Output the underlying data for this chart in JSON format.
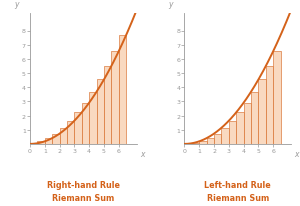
{
  "title_right": "Right-hand Rule\nRiemann Sum",
  "title_left": "Left-hand Rule\nRiemann Sum",
  "title_color": "#D4621A",
  "title_fontsize": 5.8,
  "bar_color": "#F9D9C0",
  "bar_edge_color": "#D4621A",
  "curve_color": "#D4621A",
  "curve_lw": 1.4,
  "xlim": [
    0,
    7.2
  ],
  "ylim": [
    0,
    9.2
  ],
  "xticks": [
    0,
    1,
    2,
    3,
    4,
    5,
    6
  ],
  "yticks": [
    1,
    2,
    3,
    4,
    5,
    6,
    7,
    8
  ],
  "n_bars": 12,
  "x_start": 0.5,
  "x_end": 6.5,
  "tick_fontsize": 4.5,
  "axis_label_fontsize": 5.5,
  "label_color": "#999999",
  "background_color": "#ffffff",
  "func_a": 1.0,
  "func_b": 5.5
}
